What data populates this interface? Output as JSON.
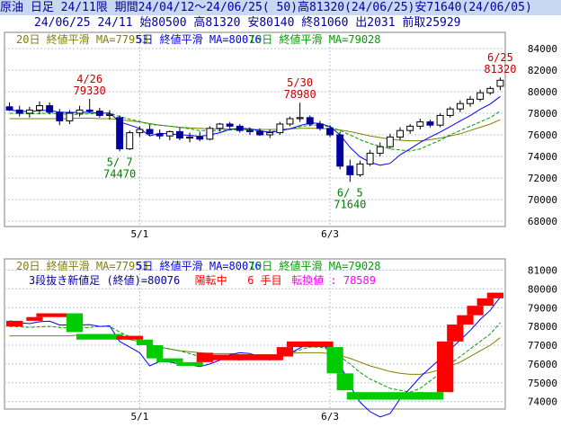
{
  "header": {
    "line1": "原油 日足 24/11限 期間24/04/12～24/06/25( 50)高81320(24/06/25)安71640(24/06/05)",
    "line2": "24/06/25 24/11 始80500 高81320 安80140 終81060 出2031 前取25929"
  },
  "colors": {
    "bg": "#ffffff",
    "header_bg": "#c8d8f0",
    "up_candle": "#ffffff",
    "down_candle": "#0000a0",
    "ma5": "#0000ff",
    "ma10": "#00a000",
    "ma20": "#808000",
    "rise_block": "#ff0000",
    "fall_block": "#00cc00",
    "grid": "#b0c4de",
    "annot_red": "#c00000",
    "annot_green": "#008000"
  },
  "chart_data": [
    {
      "type": "candlestick",
      "legend": [
        {
          "text": "20日 終値平滑 MA=77953",
          "color": "#808000"
        },
        {
          "text": "5日 終値平滑 MA=80076",
          "color": "#0000ff"
        },
        {
          "text": "10日 終値平滑 MA=79028",
          "color": "#00a000"
        }
      ],
      "y_ticks": [
        68000,
        70000,
        72000,
        74000,
        76000,
        78000,
        80000,
        82000,
        84000
      ],
      "y_tick_labels": [
        "68000",
        "70000",
        "72000",
        "74000",
        "76000",
        "78000",
        "80000",
        "82000",
        "84000"
      ],
      "ylim": [
        67500,
        85500
      ],
      "x_tick_labels": [
        {
          "index": 13,
          "label": "5/1"
        },
        {
          "index": 32,
          "label": "6/3"
        }
      ],
      "ohlc": [
        {
          "o": 78600,
          "h": 79000,
          "l": 78200,
          "c": 78300
        },
        {
          "o": 78300,
          "h": 78700,
          "l": 77700,
          "c": 78000
        },
        {
          "o": 78000,
          "h": 78600,
          "l": 77600,
          "c": 78300
        },
        {
          "o": 78300,
          "h": 79100,
          "l": 77900,
          "c": 78700
        },
        {
          "o": 78700,
          "h": 79000,
          "l": 77900,
          "c": 78100
        },
        {
          "o": 78100,
          "h": 78400,
          "l": 76900,
          "c": 77300
        },
        {
          "o": 77300,
          "h": 78300,
          "l": 77000,
          "c": 78000
        },
        {
          "o": 78000,
          "h": 78700,
          "l": 77700,
          "c": 78300
        },
        {
          "o": 78300,
          "h": 79330,
          "l": 78000,
          "c": 78200
        },
        {
          "o": 78200,
          "h": 78500,
          "l": 77600,
          "c": 77800
        },
        {
          "o": 77800,
          "h": 78300,
          "l": 77400,
          "c": 77900
        },
        {
          "o": 77600,
          "h": 77800,
          "l": 74470,
          "c": 74700
        },
        {
          "o": 74700,
          "h": 76400,
          "l": 74600,
          "c": 76200
        },
        {
          "o": 76200,
          "h": 76800,
          "l": 75800,
          "c": 76500
        },
        {
          "o": 76500,
          "h": 76900,
          "l": 75900,
          "c": 76100
        },
        {
          "o": 76100,
          "h": 76500,
          "l": 75600,
          "c": 75900
        },
        {
          "o": 75900,
          "h": 76400,
          "l": 75500,
          "c": 76300
        },
        {
          "o": 76300,
          "h": 76700,
          "l": 75500,
          "c": 75700
        },
        {
          "o": 75700,
          "h": 76200,
          "l": 75300,
          "c": 75800
        },
        {
          "o": 75800,
          "h": 76300,
          "l": 75400,
          "c": 75600
        },
        {
          "o": 75600,
          "h": 76800,
          "l": 75500,
          "c": 76600
        },
        {
          "o": 76600,
          "h": 77100,
          "l": 76300,
          "c": 77000
        },
        {
          "o": 77000,
          "h": 77200,
          "l": 76600,
          "c": 76800
        },
        {
          "o": 76800,
          "h": 77000,
          "l": 76200,
          "c": 76400
        },
        {
          "o": 76400,
          "h": 76700,
          "l": 76000,
          "c": 76300
        },
        {
          "o": 76300,
          "h": 76600,
          "l": 75900,
          "c": 76000
        },
        {
          "o": 76000,
          "h": 76500,
          "l": 75700,
          "c": 76200
        },
        {
          "o": 76200,
          "h": 77200,
          "l": 76000,
          "c": 77000
        },
        {
          "o": 77000,
          "h": 77700,
          "l": 76800,
          "c": 77500
        },
        {
          "o": 77500,
          "h": 78980,
          "l": 77200,
          "c": 77600
        },
        {
          "o": 77600,
          "h": 77800,
          "l": 76800,
          "c": 77000
        },
        {
          "o": 77000,
          "h": 77300,
          "l": 76400,
          "c": 76600
        },
        {
          "o": 76600,
          "h": 76900,
          "l": 75800,
          "c": 76000
        },
        {
          "o": 76000,
          "h": 76300,
          "l": 72800,
          "c": 73100
        },
        {
          "o": 73100,
          "h": 73700,
          "l": 71640,
          "c": 72300
        },
        {
          "o": 72300,
          "h": 73600,
          "l": 72100,
          "c": 73300
        },
        {
          "o": 73300,
          "h": 74600,
          "l": 73100,
          "c": 74300
        },
        {
          "o": 74300,
          "h": 75300,
          "l": 74000,
          "c": 74900
        },
        {
          "o": 74900,
          "h": 76100,
          "l": 74700,
          "c": 75800
        },
        {
          "o": 75800,
          "h": 76700,
          "l": 75500,
          "c": 76400
        },
        {
          "o": 76400,
          "h": 77000,
          "l": 76100,
          "c": 76800
        },
        {
          "o": 76800,
          "h": 77500,
          "l": 76500,
          "c": 77200
        },
        {
          "o": 77200,
          "h": 77400,
          "l": 76700,
          "c": 76900
        },
        {
          "o": 76900,
          "h": 78000,
          "l": 76700,
          "c": 77800
        },
        {
          "o": 77800,
          "h": 78600,
          "l": 77600,
          "c": 78400
        },
        {
          "o": 78400,
          "h": 79200,
          "l": 78100,
          "c": 78900
        },
        {
          "o": 78900,
          "h": 79600,
          "l": 78600,
          "c": 79300
        },
        {
          "o": 79300,
          "h": 80200,
          "l": 79100,
          "c": 79900
        },
        {
          "o": 79900,
          "h": 80500,
          "l": 79700,
          "c": 80300
        },
        {
          "o": 80500,
          "h": 81320,
          "l": 80140,
          "c": 81060
        }
      ],
      "ma5": [
        78300,
        78200,
        78150,
        78250,
        78280,
        78080,
        78080,
        78080,
        78100,
        78000,
        78030,
        77200,
        76900,
        76600,
        75900,
        76140,
        76100,
        76000,
        75960,
        75860,
        76000,
        76200,
        76500,
        76600,
        76560,
        76380,
        76220,
        76380,
        76560,
        76860,
        77100,
        77060,
        76760,
        76000,
        74840,
        73960,
        73460,
        73180,
        73360,
        74140,
        74700,
        75300,
        75800,
        76260,
        76770,
        77280,
        77780,
        78370,
        78860,
        79560
      ],
      "ma10": [
        78000,
        77980,
        77950,
        77980,
        78000,
        77950,
        77900,
        77900,
        77950,
        78000,
        78000,
        77700,
        77450,
        77250,
        76950,
        76900,
        76800,
        76700,
        76550,
        76400,
        76400,
        76400,
        76450,
        76500,
        76450,
        76300,
        76300,
        76400,
        76550,
        76750,
        76900,
        76900,
        76750,
        76400,
        76000,
        75550,
        75200,
        74950,
        74700,
        74600,
        74500,
        74700,
        75100,
        75500,
        76000,
        76400,
        76800,
        77200,
        77600,
        78200
      ],
      "ma20": [
        77500,
        77500,
        77500,
        77500,
        77500,
        77500,
        77500,
        77550,
        77550,
        77500,
        77500,
        77400,
        77300,
        77200,
        77050,
        76900,
        76800,
        76700,
        76650,
        76600,
        76550,
        76550,
        76550,
        76500,
        76500,
        76500,
        76500,
        76500,
        76550,
        76600,
        76600,
        76600,
        76550,
        76450,
        76300,
        76100,
        75900,
        75750,
        75600,
        75500,
        75450,
        75450,
        75550,
        75700,
        75900,
        76100,
        76400,
        76700,
        77000,
        77400
      ],
      "annotations": [
        {
          "index": 8,
          "date": "4/26",
          "value": "79330",
          "pos": "above",
          "color": "#c00000"
        },
        {
          "index": 11,
          "date": "5/ 7",
          "value": "74470",
          "pos": "below",
          "color": "#008000"
        },
        {
          "index": 29,
          "date": "5/30",
          "value": "78980",
          "pos": "above",
          "color": "#c00000"
        },
        {
          "index": 34,
          "date": "6/ 5",
          "value": "71640",
          "pos": "below",
          "color": "#008000"
        },
        {
          "index": 49,
          "date": "6/25",
          "value": "81320",
          "pos": "above",
          "color": "#c00000"
        }
      ]
    },
    {
      "type": "three-line-break",
      "legend": [
        {
          "text": "20日 終値平滑 MA=77953",
          "color": "#808000"
        },
        {
          "text": "5日 終値平滑 MA=80076",
          "color": "#0000ff"
        },
        {
          "text": "10日 終値平滑 MA=79028",
          "color": "#00a000"
        }
      ],
      "info": [
        {
          "text": "3段抜き新値足 (終値)=80076",
          "color": "#0000a0"
        },
        {
          "text": "陽転中",
          "color": "#ff0000"
        },
        {
          "text": "6 手目",
          "color": "#ff0000"
        },
        {
          "text": "転換値 : 78589",
          "color": "#ff00ff"
        }
      ],
      "y_ticks": [
        74000,
        75000,
        76000,
        77000,
        78000,
        79000,
        80000,
        81000
      ],
      "y_tick_labels": [
        "74000",
        "75000",
        "76000",
        "77000",
        "78000",
        "79000",
        "80000",
        "81000"
      ],
      "ylim": [
        73600,
        81600
      ],
      "x_tick_labels": [
        {
          "index": 13,
          "label": "5/1"
        },
        {
          "index": 32,
          "label": "6/3"
        }
      ],
      "bricks": [
        {
          "from": 0,
          "to": 1,
          "lo": 78000,
          "hi": 78300,
          "dir": "up"
        },
        {
          "from": 2,
          "to": 3,
          "lo": 78300,
          "hi": 78500,
          "dir": "up"
        },
        {
          "from": 3,
          "to": 6,
          "lo": 78500,
          "hi": 78700,
          "dir": "up"
        },
        {
          "from": 6,
          "to": 7,
          "lo": 77700,
          "hi": 78700,
          "dir": "down"
        },
        {
          "from": 7,
          "to": 11,
          "lo": 77300,
          "hi": 77600,
          "dir": "down"
        },
        {
          "from": 11,
          "to": 13,
          "lo": 77300,
          "hi": 77500,
          "dir": "up"
        },
        {
          "from": 13,
          "to": 14,
          "lo": 77000,
          "hi": 77300,
          "dir": "down"
        },
        {
          "from": 14,
          "to": 15,
          "lo": 76300,
          "hi": 77000,
          "dir": "down"
        },
        {
          "from": 15,
          "to": 17,
          "lo": 76100,
          "hi": 76300,
          "dir": "down"
        },
        {
          "from": 17,
          "to": 19,
          "lo": 75900,
          "hi": 76100,
          "dir": "down"
        },
        {
          "from": 19,
          "to": 20,
          "lo": 76100,
          "hi": 76600,
          "dir": "up"
        },
        {
          "from": 20,
          "to": 23,
          "lo": 76200,
          "hi": 76500,
          "dir": "up"
        },
        {
          "from": 23,
          "to": 27,
          "lo": 76200,
          "hi": 76500,
          "dir": "up"
        },
        {
          "from": 27,
          "to": 28,
          "lo": 76400,
          "hi": 76900,
          "dir": "up"
        },
        {
          "from": 28,
          "to": 30,
          "lo": 76900,
          "hi": 77200,
          "dir": "up"
        },
        {
          "from": 30,
          "to": 32,
          "lo": 76900,
          "hi": 77200,
          "dir": "up"
        },
        {
          "from": 32,
          "to": 33,
          "lo": 75500,
          "hi": 76900,
          "dir": "down"
        },
        {
          "from": 33,
          "to": 34,
          "lo": 74600,
          "hi": 75500,
          "dir": "down"
        },
        {
          "from": 34,
          "to": 41,
          "lo": 74100,
          "hi": 74500,
          "dir": "down"
        },
        {
          "from": 41,
          "to": 43,
          "lo": 74100,
          "hi": 74500,
          "dir": "down"
        },
        {
          "from": 43,
          "to": 44,
          "lo": 74500,
          "hi": 77200,
          "dir": "up"
        },
        {
          "from": 44,
          "to": 45,
          "lo": 77200,
          "hi": 78100,
          "dir": "up"
        },
        {
          "from": 45,
          "to": 46,
          "lo": 78100,
          "hi": 78600,
          "dir": "up"
        },
        {
          "from": 46,
          "to": 47,
          "lo": 78600,
          "hi": 79100,
          "dir": "up"
        },
        {
          "from": 47,
          "to": 48,
          "lo": 79100,
          "hi": 79500,
          "dir": "up"
        },
        {
          "from": 48,
          "to": 49,
          "lo": 79500,
          "hi": 79800,
          "dir": "up"
        }
      ]
    }
  ]
}
